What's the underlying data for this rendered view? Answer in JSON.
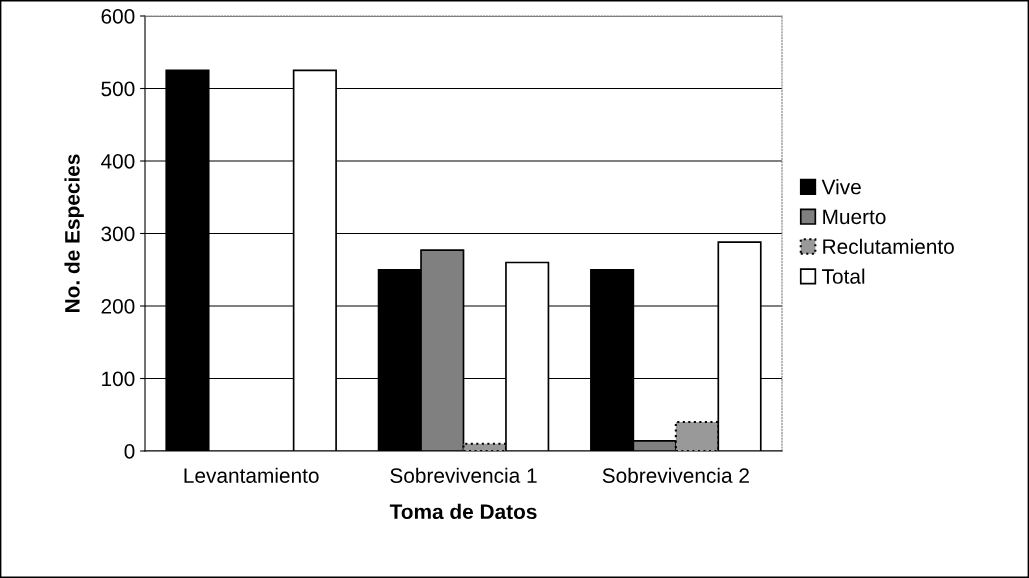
{
  "chart_data": {
    "type": "bar",
    "xlabel": "Toma de Datos",
    "ylabel": "No. de Especies",
    "categories": [
      "Levantamiento",
      "Sobrevivencia 1",
      "Sobrevivencia 2"
    ],
    "series": [
      {
        "name": "Vive",
        "color": "#000000",
        "values": [
          525,
          250,
          250
        ]
      },
      {
        "name": "Muerto",
        "color": "#808080",
        "values": [
          null,
          277,
          14
        ]
      },
      {
        "name": "Reclutamiento",
        "color": "#999999",
        "line_style": "dotted",
        "values": [
          null,
          10,
          40
        ]
      },
      {
        "name": "Total",
        "color": "#ffffff",
        "values": [
          525,
          260,
          288
        ]
      }
    ],
    "ylim": [
      0,
      600
    ],
    "yticks": [
      0,
      100,
      200,
      300,
      400,
      500,
      600
    ],
    "grid": "y",
    "legend": "right"
  }
}
